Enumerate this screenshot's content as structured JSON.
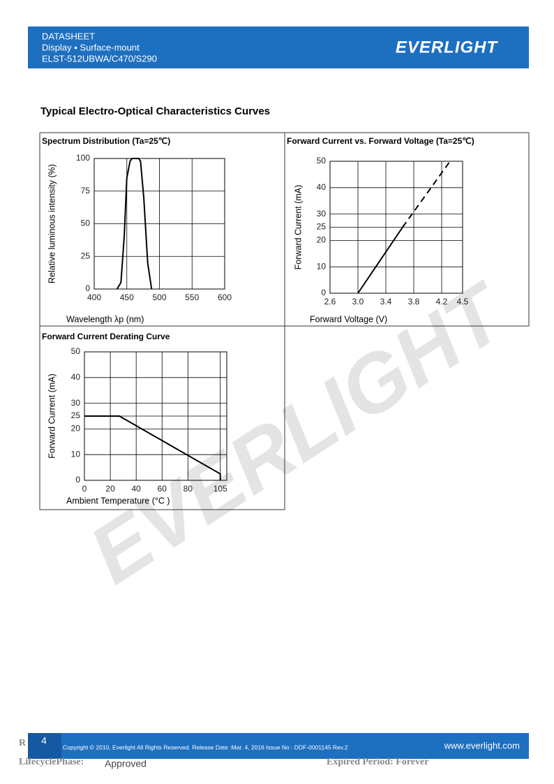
{
  "header": {
    "lines": [
      "DATASHEET",
      "Display ▪ Surface-mount",
      "ELST-512UBWA/C470/S290"
    ],
    "logo": "EVERLIGHT"
  },
  "section_title": "Typical Electro-Optical Characteristics Curves",
  "watermark": "EVERLIGHT",
  "chart_data": [
    {
      "type": "line",
      "title": "Spectrum Distribution (Ta=25℃)",
      "x_label": "Wavelength λp (nm)",
      "y_label": "Relative luminous intensity (%)",
      "x": [
        435,
        441,
        446,
        450,
        455,
        458,
        468,
        471,
        476,
        482,
        488
      ],
      "values": [
        0,
        5,
        40,
        85,
        98,
        100,
        100,
        98,
        70,
        20,
        0
      ],
      "color": "#000000",
      "xlim": [
        400,
        600
      ],
      "xticks": [
        400,
        450,
        500,
        550,
        600
      ],
      "ylim": [
        0,
        100
      ],
      "yticks": [
        0,
        25,
        50,
        75,
        100
      ],
      "grid": true
    },
    {
      "type": "line",
      "title": "Forward Current vs. Forward Voltage (Ta=25℃)",
      "x_label": "Forward Voltage (V)",
      "y_label": "Forward Current (mA)",
      "series": [
        {
          "x": [
            3.0,
            3.64
          ],
          "values": [
            0,
            25
          ],
          "dashed": false
        },
        {
          "x": [
            3.64,
            4.32
          ],
          "values": [
            25,
            50
          ],
          "dashed": true
        }
      ],
      "color": "#000000",
      "xlim": [
        2.6,
        4.5
      ],
      "xticks": [
        2.6,
        {
          "value": 3,
          "label": "3.0"
        },
        3.4,
        3.8,
        4.2,
        4.5
      ],
      "ylim": [
        0,
        50
      ],
      "yticks": [
        0,
        10,
        20,
        25,
        30,
        40,
        50
      ],
      "grid": true
    },
    {
      "type": "line",
      "title": "Forward Current Derating Curve",
      "x_label": "Ambient Temperature (°C )",
      "y_label": "Forward Current (mA)",
      "x": [
        0,
        27,
        105,
        105
      ],
      "values": [
        25,
        25,
        2.5,
        0
      ],
      "color": "#000000",
      "xlim": [
        0,
        110
      ],
      "xticks": [
        0,
        20,
        40,
        60,
        80,
        105
      ],
      "ylim": [
        0,
        50
      ],
      "yticks": [
        0,
        10,
        20,
        25,
        30,
        40,
        50
      ],
      "grid": true
    }
  ],
  "footer": {
    "page": "4",
    "copyright": "Copyright © 2010, Everlight All Rights Reserved. Release Date :Mar. 4, 2016 Issue No : DDF-0001145 Rev.2",
    "url": "www.everlight.com",
    "r": "R",
    "lifecycle_label": "LifecyclePhase:",
    "lifecycle_value": "Approved",
    "expired": "Expired Period: Forever"
  }
}
